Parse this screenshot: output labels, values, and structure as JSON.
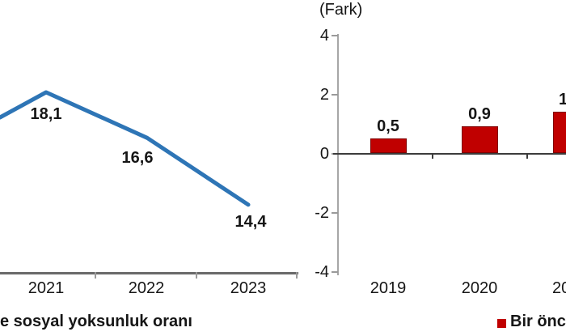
{
  "chart_data": [
    {
      "type": "line",
      "title": "",
      "categories": [
        "2021",
        "2022",
        "2023"
      ],
      "values": [
        18.1,
        16.6,
        14.4
      ],
      "value_labels": [
        "18,1",
        "16,6",
        "14,4"
      ],
      "line_color": "#2E75B6",
      "legend_label_visible": "e sosyal yoksunluk oranı",
      "layout_note": "chart cropped at left image edge; line enters from edge rising to 2021 peak",
      "grid": "off"
    },
    {
      "type": "bar",
      "title": "(Fark)",
      "categories": [
        "2019",
        "2020",
        "20"
      ],
      "values": [
        0.5,
        0.9,
        1.4
      ],
      "value_labels": [
        "0,5",
        "0,9",
        "1"
      ],
      "y_tick_labels": [
        "4",
        "2",
        "0",
        "-2",
        "-4"
      ],
      "ylim": [
        -4,
        4
      ],
      "bar_color": "#C00000",
      "legend_label_visible": "Bir önce",
      "legend_swatch_color": "#C00000",
      "layout_note": "chart cropped at right image edge; third bar, its value label and year label only partially visible",
      "grid": "off"
    }
  ]
}
